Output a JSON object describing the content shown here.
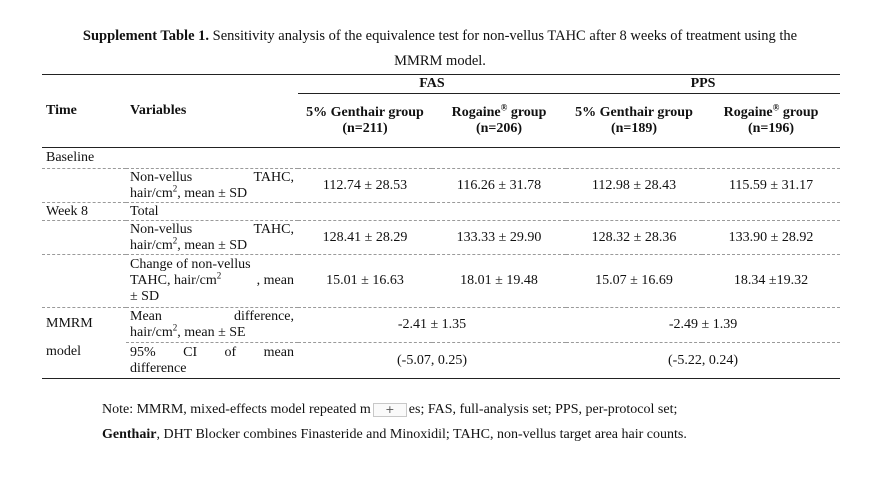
{
  "title": {
    "bold": "Supplement Table 1.",
    "text": " Sensitivity analysis of the equivalence test for non-vellus TAHC after 8 weeks of treatment using the MMRM model."
  },
  "headers": {
    "time": "Time",
    "variables": "Variables",
    "fas": "FAS",
    "pps": "PPS",
    "genthair_fas": "5% Genthair group (n=211)",
    "rogaine_fas_a": "Rogaine",
    "rogaine_fas_b": " group (n=206)",
    "genthair_pps": "5% Genthair group (n=189)",
    "rogaine_pps_a": "Rogaine",
    "rogaine_pps_b": " group (n=196)",
    "reg": "®"
  },
  "rows": {
    "baseline": "Baseline",
    "week8": "Week 8",
    "mmrm_a": "MMRM",
    "mmrm_b": "model",
    "tahc_w1": "Non-vellus",
    "tahc_w2": "TAHC,",
    "tahc_l2a": "hair/cm",
    "tahc_l2b": ", mean ± SD",
    "sq": "2",
    "total": "Total",
    "change_l1": "Change of non-vellus",
    "change_l2a": "TAHC, hair/cm",
    "change_l2b": ", mean",
    "change_l3": "± SD",
    "md_w1": "Mean",
    "md_w2": "difference,",
    "md_l2a": "hair/cm",
    "md_l2b": ", mean ± SE",
    "ci_w1": "95%",
    "ci_w2": "CI",
    "ci_w3": "of",
    "ci_w4": "mean",
    "ci_l2": "difference"
  },
  "values": {
    "baseline": [
      "112.74 ± 28.53",
      "116.26 ± 31.78",
      "112.98 ± 28.43",
      "115.59 ± 31.17"
    ],
    "week8": [
      "128.41 ± 28.29",
      "133.33 ± 29.90",
      "128.32 ± 28.36",
      "133.90 ± 28.92"
    ],
    "change": [
      "15.01 ± 16.63",
      "18.01 ± 19.48",
      "15.07 ± 16.69",
      "18.34 ±19.32"
    ],
    "mean_diff": [
      "-2.41 ± 1.35",
      "-2.49 ± 1.39"
    ],
    "ci": [
      "(-5.07, 0.25)",
      "(-5.22, 0.24)"
    ]
  },
  "note": {
    "p1": "Note: MMRM, mixed-effects model repeated m",
    "plus": "+",
    "p2": "es; FAS, full-analysis set; PPS, per-protocol set;",
    "bold": "Genthair",
    "p3": ", DHT Blocker combines Finasteride and Minoxidil; TAHC, non-vellus target area hair counts."
  }
}
